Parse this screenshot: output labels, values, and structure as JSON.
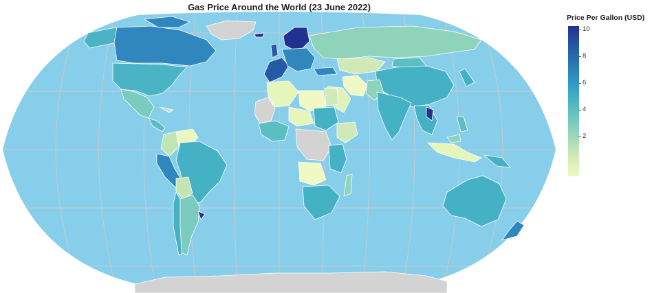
{
  "title": "Gas Price Around the World (23 June 2022)",
  "legend": {
    "title": "Price Per Gallon (USD)",
    "ticks": [
      "10",
      "8",
      "6",
      "4",
      "2"
    ]
  },
  "colors": {
    "ocean": "#87ceeb",
    "land_no_data": "#d3d3d3",
    "graticule": "#c9c9c9",
    "border": "#ffffff",
    "scale_low": "#f0f9c4",
    "scale_mid": "#45b1c4",
    "scale_high": "#21318f"
  },
  "map_data": {
    "projection": "robinson",
    "metric": "Price Per Gallon (USD)",
    "scale_range": [
      0,
      10
    ],
    "graticule": true
  }
}
